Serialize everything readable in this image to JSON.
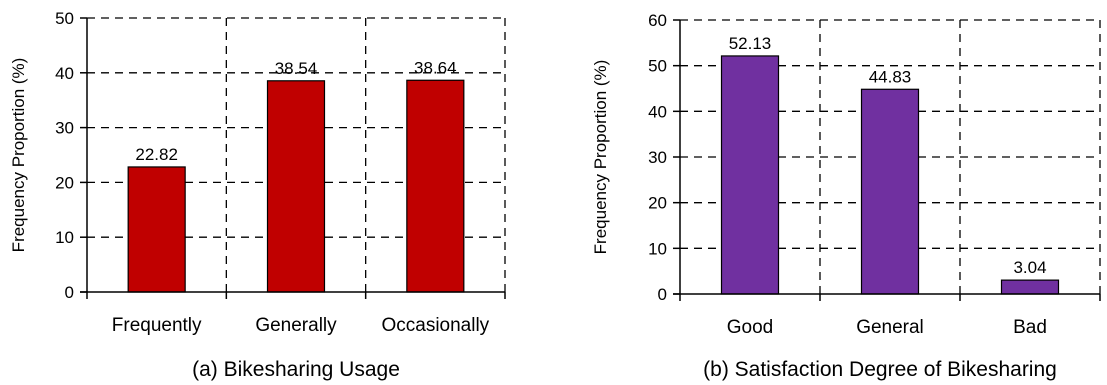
{
  "chart_data": [
    {
      "type": "bar",
      "title": "(a) Bikesharing Usage",
      "xlabel": "",
      "ylabel": "Frequency Proportion (%)",
      "categories": [
        "Frequently",
        "Generally",
        "Occasionally"
      ],
      "values": [
        22.82,
        38.54,
        38.64
      ],
      "value_labels": [
        "22.82",
        "38.54",
        "38.64"
      ],
      "ylim": [
        0,
        50
      ],
      "yticks": [
        0,
        10,
        20,
        30,
        40,
        50
      ],
      "bar_color": "#C00000",
      "grid": "dashed",
      "legend": "none"
    },
    {
      "type": "bar",
      "title": "(b) Satisfaction Degree of Bikesharing",
      "xlabel": "",
      "ylabel": "Frequency Proportion (%)",
      "categories": [
        "Good",
        "General",
        "Bad"
      ],
      "values": [
        52.13,
        44.83,
        3.04
      ],
      "value_labels": [
        "52.13",
        "44.83",
        "3.04"
      ],
      "ylim": [
        0,
        60
      ],
      "yticks": [
        0,
        10,
        20,
        30,
        40,
        50,
        60
      ],
      "bar_color": "#7030A0",
      "grid": "dashed",
      "legend": "none"
    }
  ]
}
